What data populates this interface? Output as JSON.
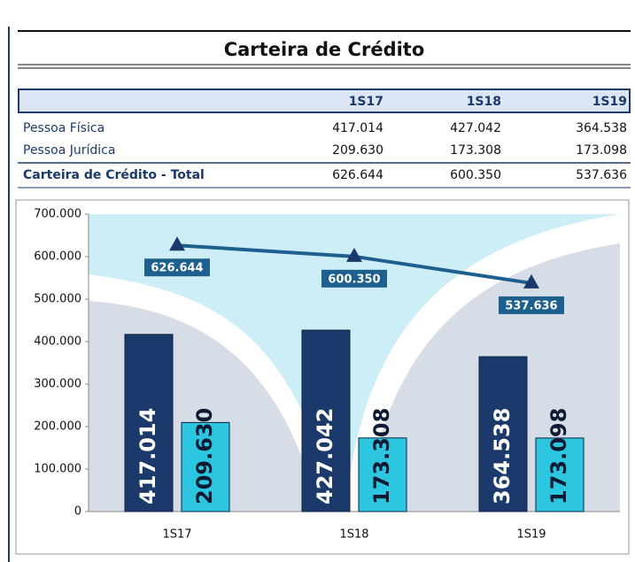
{
  "header": {
    "title": "Carteira de Crédito"
  },
  "table": {
    "columns": [
      "1S17",
      "1S18",
      "1S19"
    ],
    "rows": [
      [
        "Pessoa Física",
        "417.014",
        "427.042",
        "364.538"
      ],
      [
        "Pessoa Jurídica",
        "209.630",
        "173.308",
        "173.098"
      ],
      [
        "Carteira de Crédito - Total",
        "626.644",
        "600.350",
        "537.636"
      ]
    ]
  },
  "chart_data": {
    "type": "bar",
    "categories": [
      "1S17",
      "1S18",
      "1S19"
    ],
    "series": [
      {
        "color": "#1b3a6b",
        "values": [
          417014,
          427042,
          364538
        ],
        "value_labels": [
          "417.014",
          "427.042",
          "364.538"
        ]
      },
      {
        "color": "#2cc6e0",
        "values": [
          209630,
          173308,
          173098
        ],
        "value_labels": [
          "209.630",
          "173.308",
          "173.098"
        ]
      },
      {
        "type": "line",
        "color": "#1d5f8e",
        "values": [
          626644,
          600350,
          537636
        ],
        "value_labels": [
          "626.644",
          "600.350",
          "537.636"
        ]
      }
    ],
    "ylim": [
      0,
      700000
    ],
    "yticks": [
      0,
      {
        "value": 100000,
        "label": "100.000"
      },
      {
        "value": 200000,
        "label": "200.000"
      },
      {
        "value": 300000,
        "label": "300.000"
      },
      {
        "value": 400000,
        "label": "400.000"
      },
      {
        "value": 500000,
        "label": "500.000"
      },
      {
        "value": 600000,
        "label": "600.000"
      },
      {
        "value": 700000,
        "label": "700.000"
      }
    ]
  }
}
